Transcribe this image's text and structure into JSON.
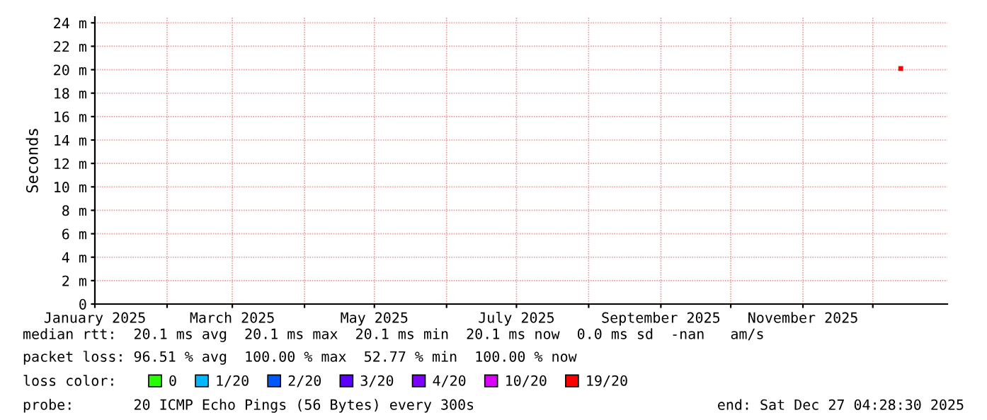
{
  "chart_data": {
    "type": "scatter",
    "ylabel": "Seconds",
    "x": [
      "2025-12-13"
    ],
    "series": [
      {
        "name": "0",
        "color": "#26ff00",
        "values": [
          null
        ]
      },
      {
        "name": "1/20",
        "color": "#00b8ff",
        "values": [
          null
        ]
      },
      {
        "name": "2/20",
        "color": "#0059ff",
        "values": [
          null
        ]
      },
      {
        "name": "3/20",
        "color": "#5e00ff",
        "values": [
          null
        ]
      },
      {
        "name": "4/20",
        "color": "#7e00ff",
        "values": [
          null
        ]
      },
      {
        "name": "10/20",
        "color": "#dd00ff",
        "values": [
          null
        ]
      },
      {
        "name": "19/20",
        "color": "#ff0000",
        "values": [
          20.1
        ]
      }
    ],
    "marker": "square",
    "legend": "bottom",
    "legend_title": "loss color:",
    "grid": true,
    "xlim": [
      "2025-01-01",
      "2026-01-02"
    ],
    "xticks": [
      {
        "value": "2025-01-01",
        "label": "January 2025"
      },
      {
        "value": "2025-02-01",
        "label": null
      },
      {
        "value": "2025-03-01",
        "label": "March 2025"
      },
      {
        "value": "2025-04-01",
        "label": null
      },
      {
        "value": "2025-05-01",
        "label": "May 2025"
      },
      {
        "value": "2025-06-01",
        "label": null
      },
      {
        "value": "2025-07-01",
        "label": "July 2025"
      },
      {
        "value": "2025-08-01",
        "label": null
      },
      {
        "value": "2025-09-01",
        "label": "September 2025"
      },
      {
        "value": "2025-10-01",
        "label": null
      },
      {
        "value": "2025-11-01",
        "label": "November 2025"
      },
      {
        "value": "2025-12-01",
        "label": null
      }
    ],
    "ylim": [
      0,
      24.5
    ],
    "yticks": [
      0,
      {
        "value": 2,
        "label": "2 m"
      },
      {
        "value": 4,
        "label": "4 m"
      },
      {
        "value": 6,
        "label": "6 m"
      },
      {
        "value": 8,
        "label": "8 m"
      },
      {
        "value": 10,
        "label": "10 m"
      },
      {
        "value": 12,
        "label": "12 m"
      },
      {
        "value": 14,
        "label": "14 m"
      },
      {
        "value": 16,
        "label": "16 m"
      },
      {
        "value": 18,
        "label": "18 m"
      },
      {
        "value": 20,
        "label": "20 m"
      },
      {
        "value": 22,
        "label": "22 m"
      },
      {
        "value": 24,
        "label": "24 m"
      }
    ],
    "annotations": [
      "median rtt:  20.1 ms avg  20.1 ms max  20.1 ms min  20.1 ms now  0.0 ms sd  -nan   am/s",
      "packet loss: 96.51 % avg  100.00 % max  52.77 % min  100.00 % now",
      "probe:       20 ICMP Echo Pings (56 Bytes) every 300s",
      "end: Sat Dec 27 04:28:30 2025"
    ]
  }
}
